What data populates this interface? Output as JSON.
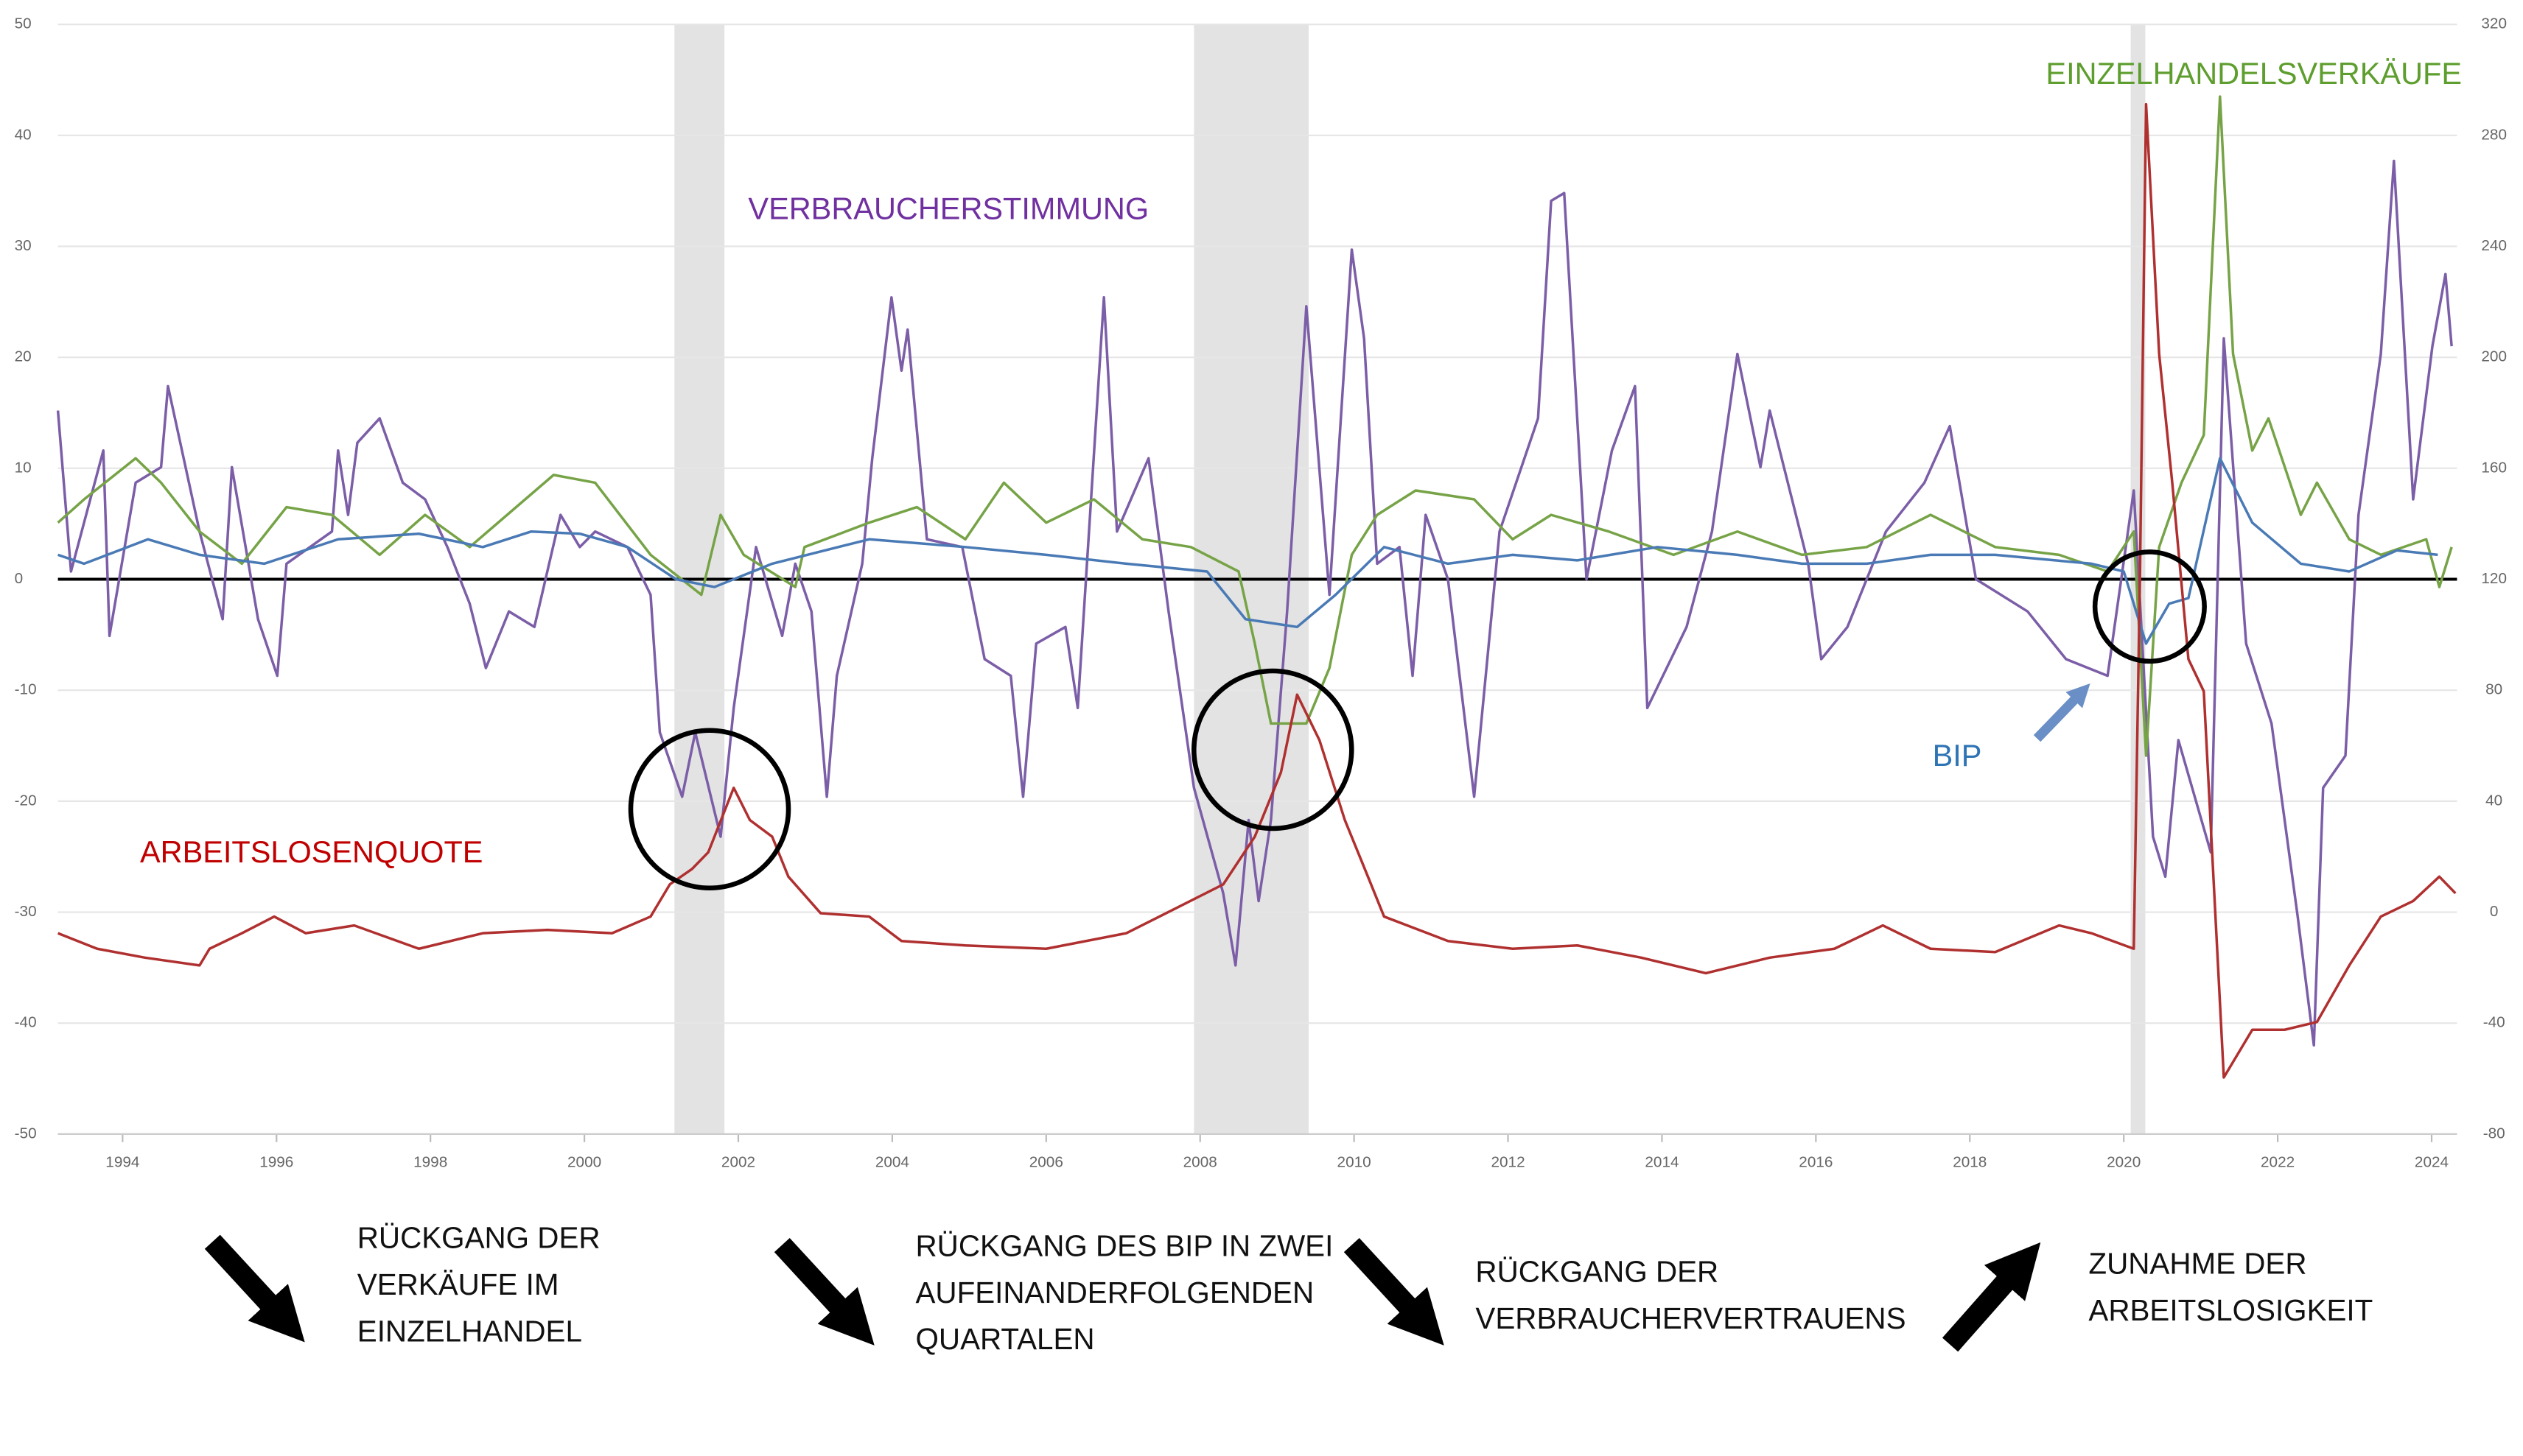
{
  "chart_data": {
    "type": "line",
    "xlim": [
      1993.16,
      2024.33
    ],
    "xticks": [
      1994,
      1996,
      1998,
      2000,
      2002,
      2004,
      2006,
      2008,
      2010,
      2012,
      2014,
      2016,
      2018,
      2020,
      2022,
      2024
    ],
    "ylim": [
      -50,
      50
    ],
    "yticks": [
      -50,
      -40,
      -30,
      -20,
      -10,
      0,
      10,
      20,
      30,
      40,
      50
    ],
    "y2lim": [
      -80,
      320
    ],
    "y2ticks": [
      -80,
      -40,
      0,
      40,
      80,
      120,
      160,
      200,
      240,
      280,
      320
    ],
    "grid": true,
    "shaded_periods": [
      [
        2001.17,
        2001.82
      ],
      [
        2007.92,
        2009.41
      ],
      [
        2020.09,
        2020.28
      ]
    ],
    "series": [
      {
        "name": "VERBRAUCHERSTIMMUNG",
        "color": "#7b5ea7",
        "label_color": "#7030a0",
        "x": [
          1993.16,
          1993.33,
          1993.75,
          1993.83,
          1994.17,
          1994.5,
          1994.59,
          1995.0,
          1995.3,
          1995.42,
          1995.76,
          1996.01,
          1996.13,
          1996.72,
          1996.8,
          1996.93,
          1997.05,
          1997.34,
          1997.64,
          1997.93,
          1998.22,
          1998.51,
          1998.72,
          1999.02,
          1999.35,
          1999.69,
          1999.94,
          2000.14,
          2000.56,
          2000.86,
          2000.98,
          2001.27,
          2001.44,
          2001.77,
          2001.94,
          2002.23,
          2002.57,
          2002.74,
          2002.95,
          2003.15,
          2003.28,
          2003.61,
          2003.74,
          2003.99,
          2004.12,
          2004.2,
          2004.45,
          2004.91,
          2005.2,
          2005.54,
          2005.7,
          2005.87,
          2006.25,
          2006.41,
          2006.75,
          2006.92,
          2007.33,
          2007.59,
          2007.92,
          2008.3,
          2008.46,
          2008.63,
          2008.76,
          2008.92,
          2009.13,
          2009.38,
          2009.68,
          2009.97,
          2010.13,
          2010.3,
          2010.59,
          2010.76,
          2010.93,
          2011.22,
          2011.56,
          2011.89,
          2012.39,
          2012.56,
          2012.73,
          2013.02,
          2013.35,
          2013.65,
          2013.81,
          2014.32,
          2014.65,
          2014.98,
          2015.28,
          2015.4,
          2015.9,
          2016.07,
          2016.41,
          2016.91,
          2017.41,
          2017.74,
          2018.08,
          2018.75,
          2019.25,
          2019.79,
          2020.13,
          2020.38,
          2020.54,
          2020.71,
          2021.13,
          2021.3,
          2021.59,
          2021.92,
          2022.26,
          2022.47,
          2022.59,
          2022.88,
          2023.05,
          2023.34,
          2023.51,
          2023.76,
          2024.01,
          2024.18,
          2024.26
        ],
        "values": [
          15.2,
          0.7,
          11.6,
          -5.1,
          8.7,
          10.1,
          17.4,
          4.3,
          -3.6,
          10.1,
          -3.6,
          -8.7,
          1.4,
          4.3,
          11.6,
          5.8,
          12.3,
          14.5,
          8.7,
          7.2,
          2.9,
          -2.2,
          -8.0,
          -2.9,
          -4.3,
          5.8,
          2.9,
          4.3,
          2.9,
          -1.4,
          -13.8,
          -19.6,
          -13.8,
          -23.2,
          -11.6,
          2.9,
          -5.1,
          1.4,
          -2.9,
          -19.6,
          -8.7,
          1.4,
          10.9,
          25.4,
          18.8,
          22.5,
          3.6,
          2.9,
          -7.2,
          -8.7,
          -19.6,
          -5.8,
          -4.3,
          -11.6,
          25.4,
          4.3,
          10.9,
          -2.9,
          -18.8,
          -28.3,
          -34.8,
          -21.7,
          -29.0,
          -21.7,
          -2.9,
          24.6,
          -1.4,
          29.7,
          21.7,
          1.4,
          2.9,
          -8.7,
          5.8,
          0,
          -19.6,
          4.3,
          14.5,
          34.1,
          34.8,
          0,
          11.6,
          17.4,
          -11.6,
          -4.3,
          4.3,
          20.3,
          10.1,
          15.2,
          1.4,
          -7.2,
          -4.3,
          4.3,
          8.7,
          13.8,
          0,
          -2.9,
          -7.2,
          -8.7,
          8.0,
          -23.2,
          -26.8,
          -14.5,
          -24.6,
          21.7,
          -5.8,
          -13.0,
          -30.4,
          -42.0,
          -18.8,
          -15.9,
          5.8,
          20.3,
          37.7,
          7.2,
          21.0,
          27.5,
          21.0
        ]
      },
      {
        "name": "EINZELHANDELSVERKÄUFE",
        "color": "#77a347",
        "label_color": "#5e9e2e",
        "x": [
          1993.16,
          1993.5,
          1994.17,
          1994.5,
          1995.0,
          1995.55,
          1996.13,
          1996.72,
          1997.34,
          1997.93,
          1998.51,
          1999.6,
          2000.14,
          2000.86,
          2001.52,
          2001.77,
          2002.07,
          2002.74,
          2002.86,
          2003.7,
          2004.32,
          2004.95,
          2005.45,
          2006.0,
          2006.62,
          2007.25,
          2007.88,
          2008.5,
          2008.71,
          2008.92,
          2009.38,
          2009.68,
          2009.97,
          2010.3,
          2010.8,
          2011.56,
          2012.06,
          2012.56,
          2013.31,
          2014.15,
          2014.98,
          2015.82,
          2016.66,
          2017.49,
          2018.33,
          2019.16,
          2019.79,
          2020.13,
          2020.29,
          2020.46,
          2020.75,
          2021.04,
          2021.25,
          2021.42,
          2021.67,
          2021.88,
          2022.3,
          2022.51,
          2022.93,
          2023.34,
          2023.93,
          2024.1,
          2024.26
        ],
        "values": [
          5.1,
          7.2,
          10.9,
          8.7,
          4.3,
          1.4,
          6.5,
          5.8,
          2.2,
          5.8,
          2.9,
          9.4,
          8.7,
          2.2,
          -1.4,
          5.8,
          2.2,
          -0.7,
          2.9,
          5.1,
          6.5,
          3.6,
          8.7,
          5.1,
          7.2,
          3.6,
          2.9,
          0.7,
          -5.8,
          -13.0,
          -13.0,
          -8.0,
          2.2,
          5.8,
          8.0,
          7.2,
          3.6,
          5.8,
          4.3,
          2.2,
          4.3,
          2.2,
          2.9,
          5.8,
          2.9,
          2.2,
          0.7,
          4.3,
          -15.9,
          2.9,
          8.7,
          13.0,
          43.5,
          20.3,
          11.6,
          14.5,
          5.8,
          8.7,
          3.6,
          2.2,
          3.6,
          -0.7,
          2.9
        ]
      },
      {
        "name": "BIP",
        "color": "#4a7ab5",
        "label_color": "#2e74b5",
        "x": [
          1993.16,
          1993.5,
          1994.33,
          1995.0,
          1995.84,
          1996.8,
          1997.85,
          1998.68,
          1999.31,
          1999.94,
          2000.56,
          2001.19,
          2001.69,
          2002.44,
          2003.7,
          2004.95,
          2006.0,
          2007.04,
          2008.09,
          2008.59,
          2009.26,
          2009.76,
          2010.39,
          2011.22,
          2012.06,
          2012.9,
          2013.94,
          2014.98,
          2015.82,
          2016.66,
          2017.49,
          2018.33,
          2019.58,
          2020.0,
          2020.29,
          2020.59,
          2020.84,
          2021.25,
          2021.67,
          2022.3,
          2022.93,
          2023.55,
          2024.08
        ],
        "values": [
          2.2,
          1.4,
          3.6,
          2.2,
          1.4,
          3.6,
          4.1,
          2.9,
          4.3,
          4.1,
          2.9,
          0,
          -0.7,
          1.4,
          3.6,
          2.9,
          2.2,
          1.4,
          0.7,
          -3.6,
          -4.3,
          -1.4,
          2.9,
          1.4,
          2.2,
          1.7,
          2.9,
          2.2,
          1.4,
          1.4,
          2.2,
          2.2,
          1.4,
          0.7,
          -5.8,
          -2.2,
          -1.7,
          10.9,
          5.1,
          1.4,
          0.7,
          2.6,
          2.2
        ]
      },
      {
        "name": "ARBEITSLOSENQUOTE",
        "color": "#b03030",
        "label_color": "#c00000",
        "x": [
          1993.16,
          1993.67,
          1994.29,
          1995.0,
          1995.13,
          1995.55,
          1995.97,
          1996.38,
          1997.01,
          1997.85,
          1998.68,
          1999.52,
          2000.36,
          2000.86,
          2001.11,
          2001.4,
          2001.61,
          2001.94,
          2002.15,
          2002.44,
          2002.65,
          2003.07,
          2003.7,
          2004.12,
          2004.95,
          2006.0,
          2007.04,
          2007.67,
          2008.3,
          2008.71,
          2009.05,
          2009.26,
          2009.55,
          2009.88,
          2010.18,
          2010.39,
          2011.22,
          2012.06,
          2012.9,
          2013.73,
          2014.57,
          2015.4,
          2016.24,
          2016.87,
          2017.49,
          2018.33,
          2019.16,
          2019.58,
          2020.13,
          2020.21,
          2020.29,
          2020.46,
          2020.63,
          2020.84,
          2021.04,
          2021.3,
          2021.67,
          2022.09,
          2022.51,
          2022.93,
          2023.34,
          2023.76,
          2024.1,
          2024.31
        ],
        "values": [
          -31.9,
          -33.3,
          -34.1,
          -34.8,
          -33.3,
          -31.9,
          -30.4,
          -31.9,
          -31.2,
          -33.3,
          -31.9,
          -31.6,
          -31.9,
          -30.4,
          -27.5,
          -26.1,
          -24.6,
          -18.8,
          -21.7,
          -23.2,
          -26.8,
          -30.1,
          -30.4,
          -32.6,
          -33.0,
          -33.3,
          -31.9,
          -29.7,
          -27.5,
          -23.2,
          -17.4,
          -10.4,
          -14.5,
          -21.7,
          -26.8,
          -30.4,
          -32.6,
          -33.3,
          -33.0,
          -34.1,
          -35.5,
          -34.1,
          -33.3,
          -31.2,
          -33.3,
          -33.6,
          -31.2,
          -31.9,
          -33.3,
          0,
          42.8,
          20.3,
          8.7,
          -7.2,
          -10.1,
          -44.9,
          -40.6,
          -40.6,
          -39.9,
          -34.8,
          -30.4,
          -29.0,
          -26.8,
          -28.3
        ]
      }
    ],
    "notes": [
      [
        "RÜCKGANG DER",
        "VERKÄUFE IM",
        "EINZELHANDEL"
      ],
      [
        "RÜCKGANG DES BIP IN ZWEI",
        "AUFEINANDERFOLGENDEN",
        "QUARTALEN"
      ],
      [
        "RÜCKGANG DER",
        "VERBRAUCHERVERTRAUENS"
      ],
      [
        "ZUNAHME DER",
        "ARBEITSLOSIGKEIT"
      ]
    ]
  }
}
